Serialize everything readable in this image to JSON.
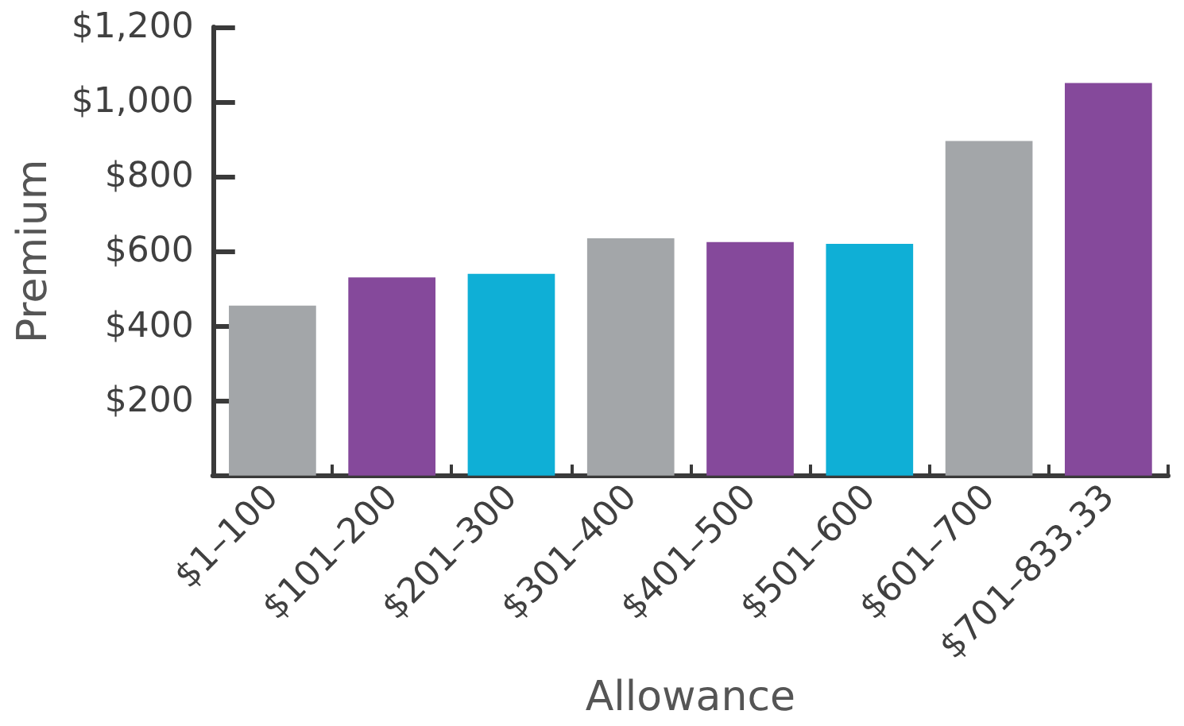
{
  "chart_data": {
    "type": "bar",
    "categories": [
      "$1–100",
      "$101–200",
      "$201–300",
      "$301–400",
      "$401–500",
      "$501–600",
      "$601–700",
      "$701–833.33"
    ],
    "values": [
      455,
      530,
      540,
      635,
      625,
      620,
      895,
      1050
    ],
    "colors": [
      "#a3a6a9",
      "#85499b",
      "#0fafd6",
      "#a3a6a9",
      "#85499b",
      "#0fafd6",
      "#a3a6a9",
      "#85499b"
    ],
    "xlabel": "Allowance",
    "ylabel": "Premium",
    "ylim": [
      0,
      1200
    ],
    "yticks": [
      {
        "value": 200,
        "label": "$200"
      },
      {
        "value": 400,
        "label": "$400"
      },
      {
        "value": 600,
        "label": "$600"
      },
      {
        "value": 800,
        "label": "$800"
      },
      {
        "value": 1000,
        "label": "$1,000"
      },
      {
        "value": 1200,
        "label": "$1,200"
      }
    ]
  }
}
